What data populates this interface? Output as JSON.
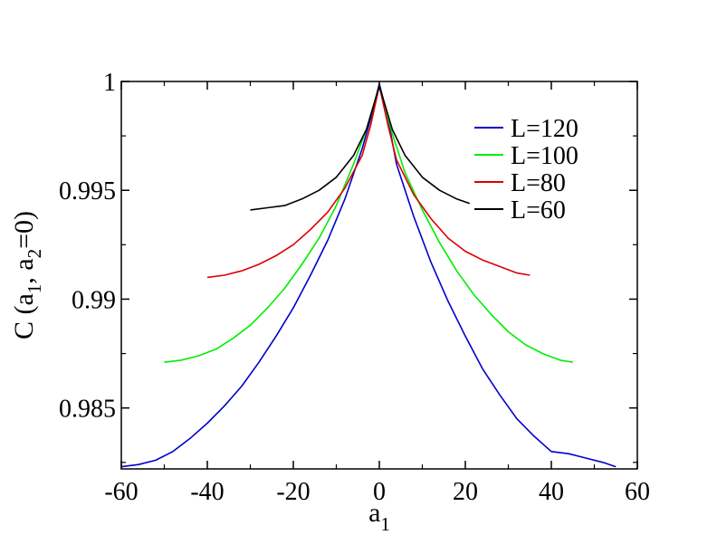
{
  "chart_data": {
    "type": "line",
    "title": "",
    "xlabel": {
      "main": "a",
      "sub": "1"
    },
    "ylabel": {
      "parts": [
        "C (a",
        "1",
        ", a",
        "2",
        "=0)"
      ]
    },
    "xlim": [
      -60,
      60
    ],
    "ylim": [
      0.9822,
      1.0
    ],
    "xticks": [
      -60,
      -40,
      -20,
      0,
      20,
      40,
      60
    ],
    "xtick_labels": [
      "-60",
      "-40",
      "-20",
      "0",
      "20",
      "40",
      "60"
    ],
    "yticks": [
      0.985,
      0.99,
      0.995,
      1.0
    ],
    "ytick_labels": [
      "0.985",
      "0.99",
      "0.995",
      "1"
    ],
    "grid": false,
    "legend_position": "top-right",
    "series": [
      {
        "name": "L=120",
        "color": "#0000cc",
        "x": [
          -60,
          -56,
          -52,
          -48,
          -44,
          -40,
          -36,
          -32,
          -28,
          -24,
          -20,
          -16,
          -12,
          -8,
          -4,
          -2,
          0,
          2,
          4,
          8,
          12,
          16,
          20,
          24,
          28,
          32,
          36,
          40,
          44,
          48,
          52,
          55
        ],
        "y": [
          0.9823,
          0.9824,
          0.9826,
          0.983,
          0.9836,
          0.9843,
          0.9851,
          0.986,
          0.9871,
          0.9883,
          0.9896,
          0.9911,
          0.9927,
          0.9946,
          0.9969,
          0.9983,
          0.9999,
          0.9983,
          0.9962,
          0.9938,
          0.9917,
          0.9899,
          0.9883,
          0.9868,
          0.9856,
          0.9845,
          0.9837,
          0.983,
          0.9829,
          0.9827,
          0.9825,
          0.9823
        ]
      },
      {
        "name": "L=100",
        "color": "#00ee00",
        "x": [
          -50,
          -46,
          -42,
          -38,
          -34,
          -30,
          -26,
          -22,
          -18,
          -14,
          -10,
          -6,
          -3,
          0,
          3,
          6,
          10,
          14,
          18,
          22,
          26,
          30,
          34,
          38,
          42,
          45
        ],
        "y": [
          0.9871,
          0.9872,
          0.9874,
          0.9877,
          0.9882,
          0.9888,
          0.9896,
          0.9905,
          0.9916,
          0.9928,
          0.9943,
          0.9962,
          0.9978,
          0.9998,
          0.9976,
          0.9958,
          0.9941,
          0.9926,
          0.9913,
          0.9902,
          0.9893,
          0.9885,
          0.9879,
          0.9875,
          0.9872,
          0.9871
        ]
      },
      {
        "name": "L=80",
        "color": "#dd0000",
        "x": [
          -40,
          -36,
          -32,
          -28,
          -24,
          -20,
          -16,
          -12,
          -8,
          -4,
          -2,
          0,
          2,
          4,
          8,
          12,
          16,
          20,
          24,
          28,
          32,
          35
        ],
        "y": [
          0.991,
          0.9911,
          0.9913,
          0.9916,
          0.992,
          0.9925,
          0.9932,
          0.994,
          0.9951,
          0.9966,
          0.998,
          0.9998,
          0.998,
          0.9964,
          0.9948,
          0.9937,
          0.9928,
          0.9922,
          0.9918,
          0.9915,
          0.9912,
          0.9911
        ]
      },
      {
        "name": "L=60",
        "color": "#000000",
        "x": [
          -30,
          -26,
          -22,
          -18,
          -14,
          -10,
          -6,
          -3,
          0,
          3,
          6,
          10,
          14,
          18,
          21
        ],
        "y": [
          0.9941,
          0.9942,
          0.9943,
          0.9946,
          0.995,
          0.9956,
          0.9966,
          0.9978,
          0.9998,
          0.9978,
          0.9966,
          0.9956,
          0.995,
          0.9946,
          0.9944
        ]
      }
    ]
  }
}
